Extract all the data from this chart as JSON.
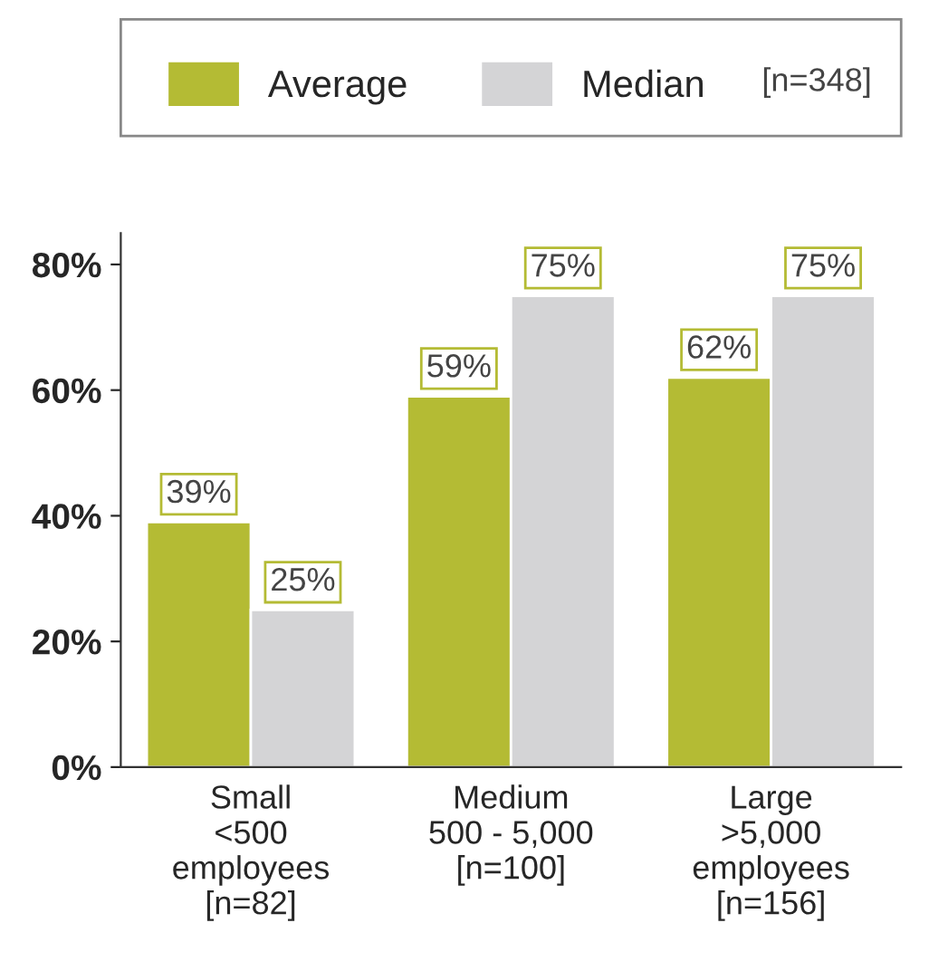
{
  "chart_data": {
    "type": "bar",
    "categories": [
      "Small\n<500\nemployees\n[n=82]",
      "Medium\n500 - 5,000\n[n=100]",
      "Large\n>5,000\nemployees\n[n=156]"
    ],
    "series": [
      {
        "name": "Average",
        "color": "#b4bb34",
        "values": [
          39,
          59,
          62
        ],
        "value_labels": [
          "39%",
          "59%",
          "62%"
        ]
      },
      {
        "name": "Median",
        "color": "#d4d4d6",
        "values": [
          25,
          75,
          75
        ],
        "value_labels": [
          "25%",
          "75%",
          "75%"
        ]
      }
    ],
    "ylim": [
      0,
      85
    ],
    "yticks": [
      {
        "value": 0,
        "label": "0%"
      },
      {
        "value": 20,
        "label": "20%"
      },
      {
        "value": 40,
        "label": "40%"
      },
      {
        "value": 60,
        "label": "60%"
      },
      {
        "value": 80,
        "label": "80%"
      }
    ],
    "grid": false,
    "legend": "top",
    "annotations": [
      "[n=348]"
    ]
  }
}
